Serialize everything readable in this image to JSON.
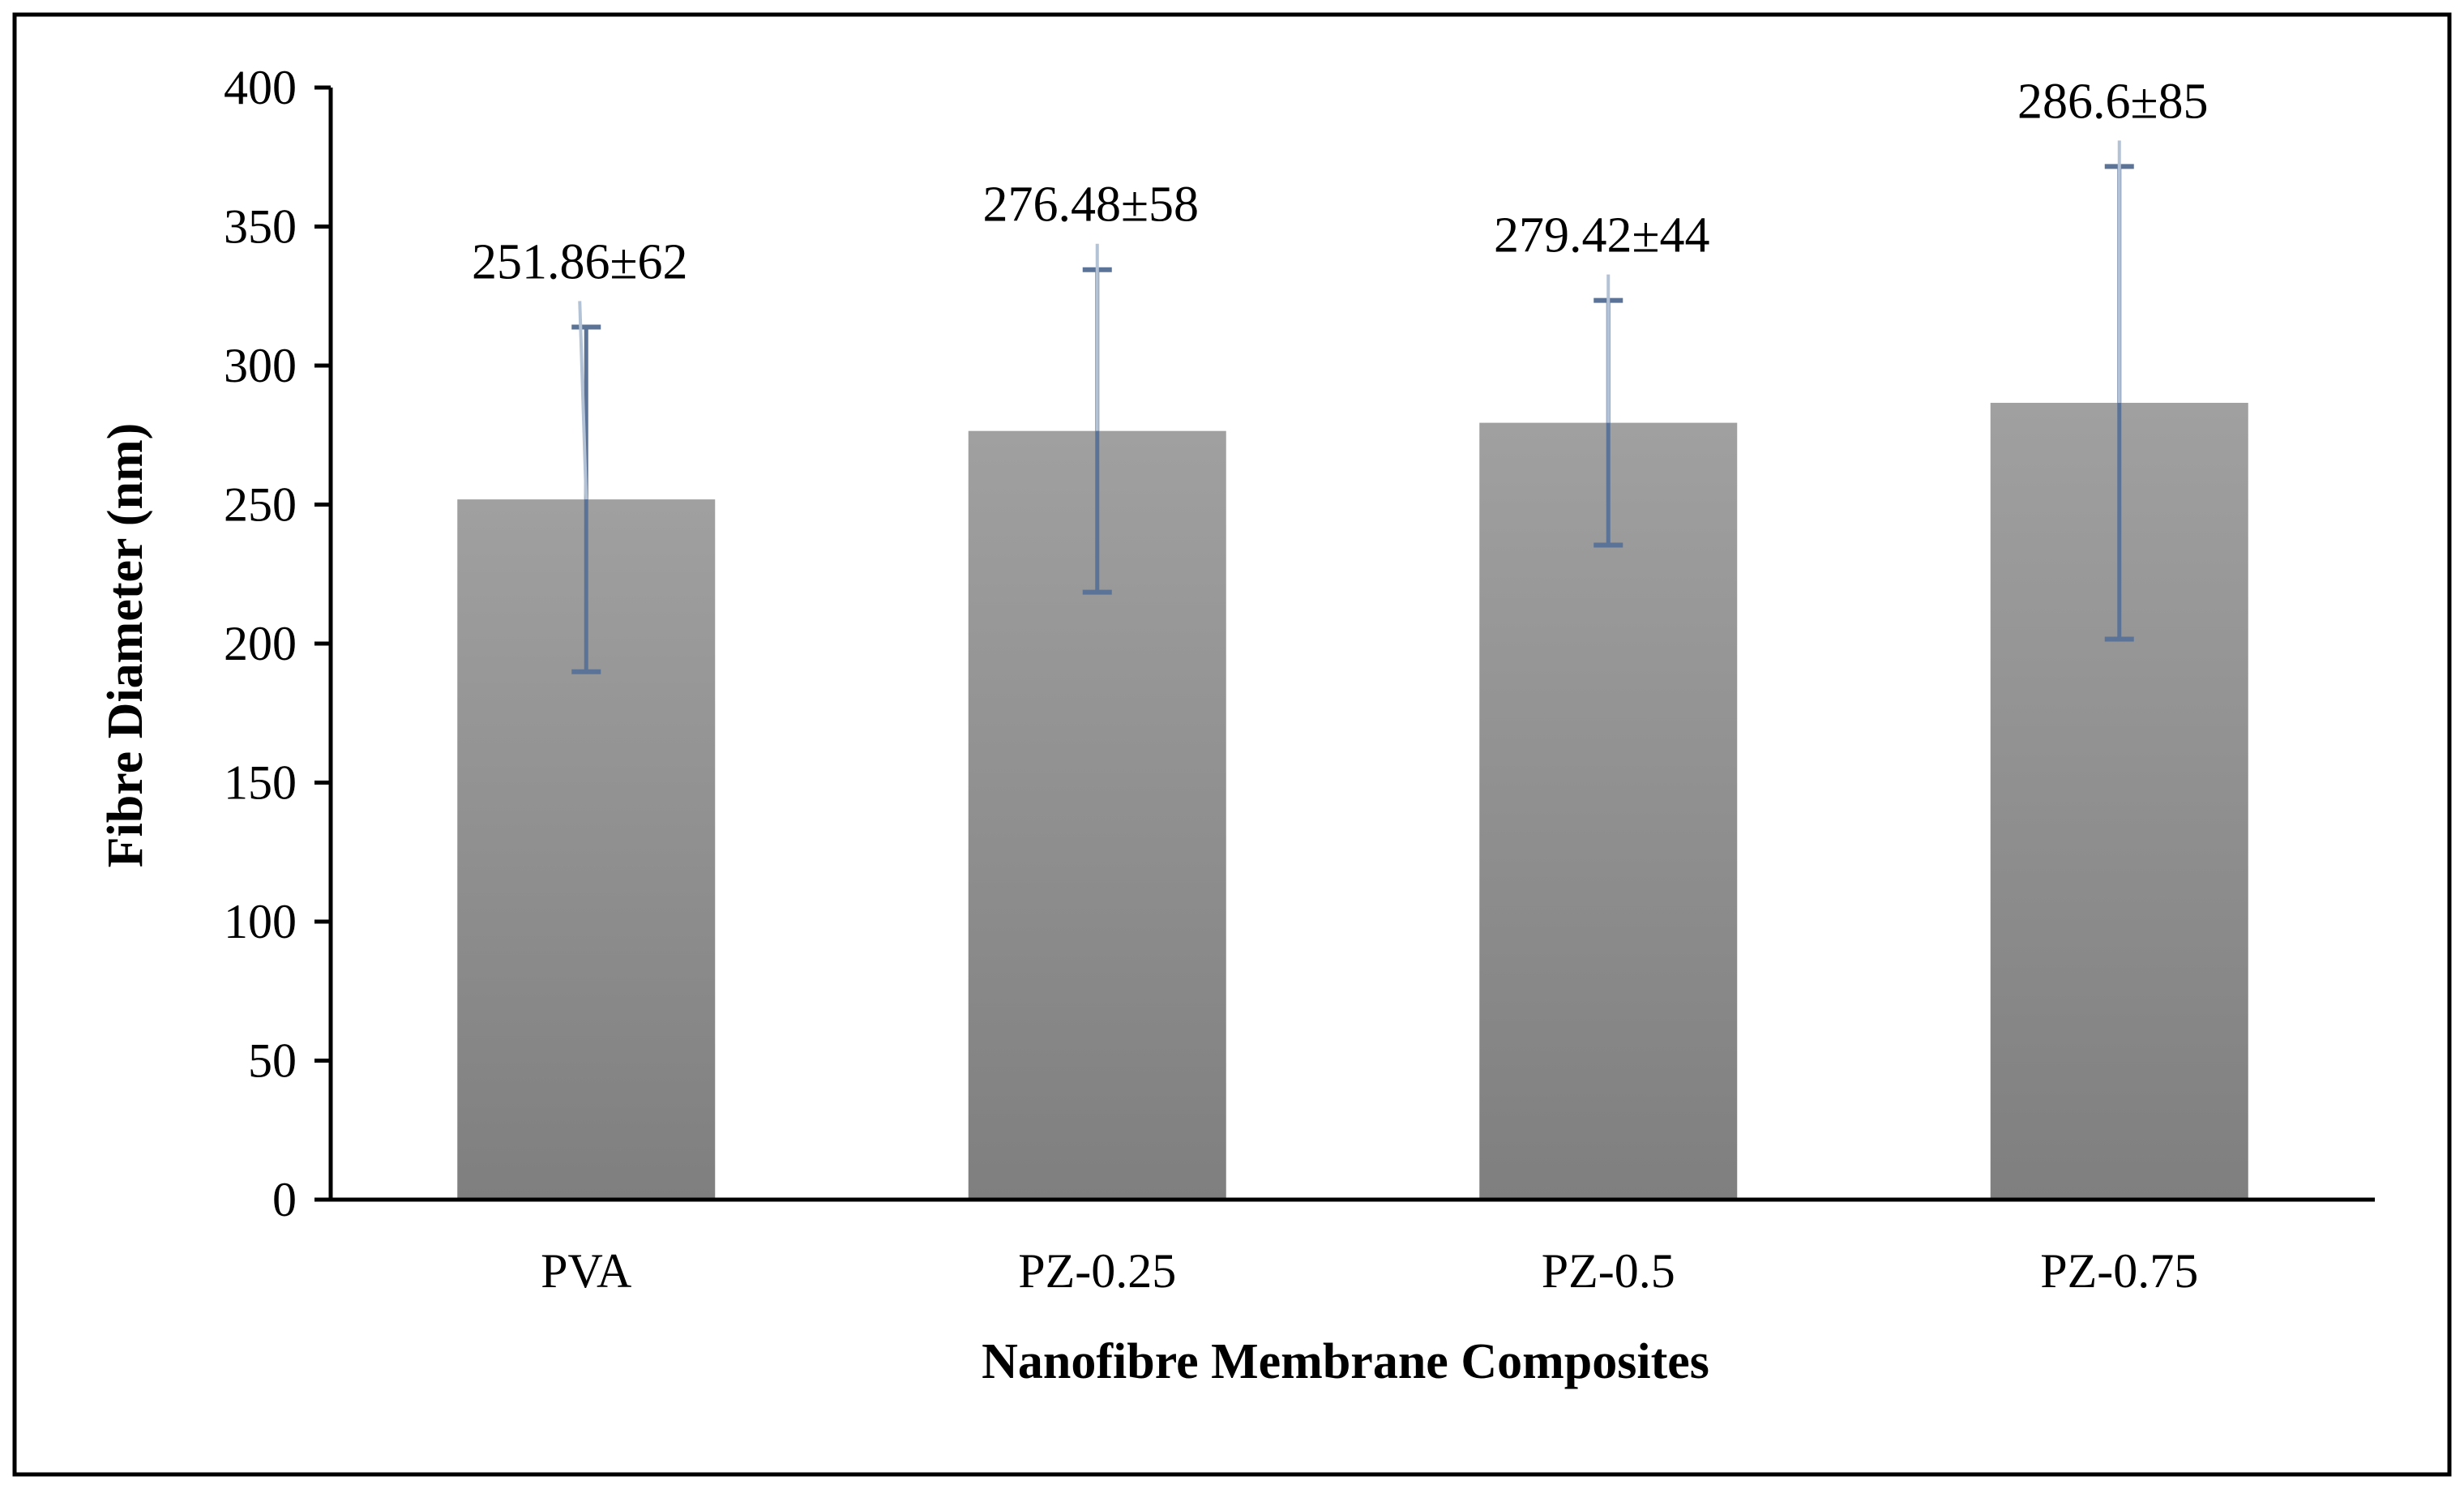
{
  "chart_data": {
    "type": "bar",
    "categories": [
      "PVA",
      "PZ-0.25",
      "PZ-0.5",
      "PZ-0.75"
    ],
    "values": [
      251.86,
      276.48,
      279.42,
      286.6
    ],
    "error_lower": [
      62,
      58,
      44,
      85
    ],
    "error_upper": [
      62,
      58,
      44,
      85
    ],
    "data_labels": [
      "251.86±62",
      "276.48±58",
      "279.42±44",
      "286.6±85"
    ],
    "xlabel": "Nanofibre Membrane Composites",
    "ylabel": "Fibre Diameter (nm)",
    "ylim": [
      0,
      400
    ],
    "yticks": [
      0,
      50,
      100,
      150,
      200,
      250,
      300,
      350,
      400
    ],
    "grid": false,
    "legend": "none",
    "bar_color_top": "#a0a0a0",
    "bar_color_bottom": "#7f7f7f",
    "error_bar_color": "#5b7396",
    "leader_line_color": "#b4c2d6"
  }
}
